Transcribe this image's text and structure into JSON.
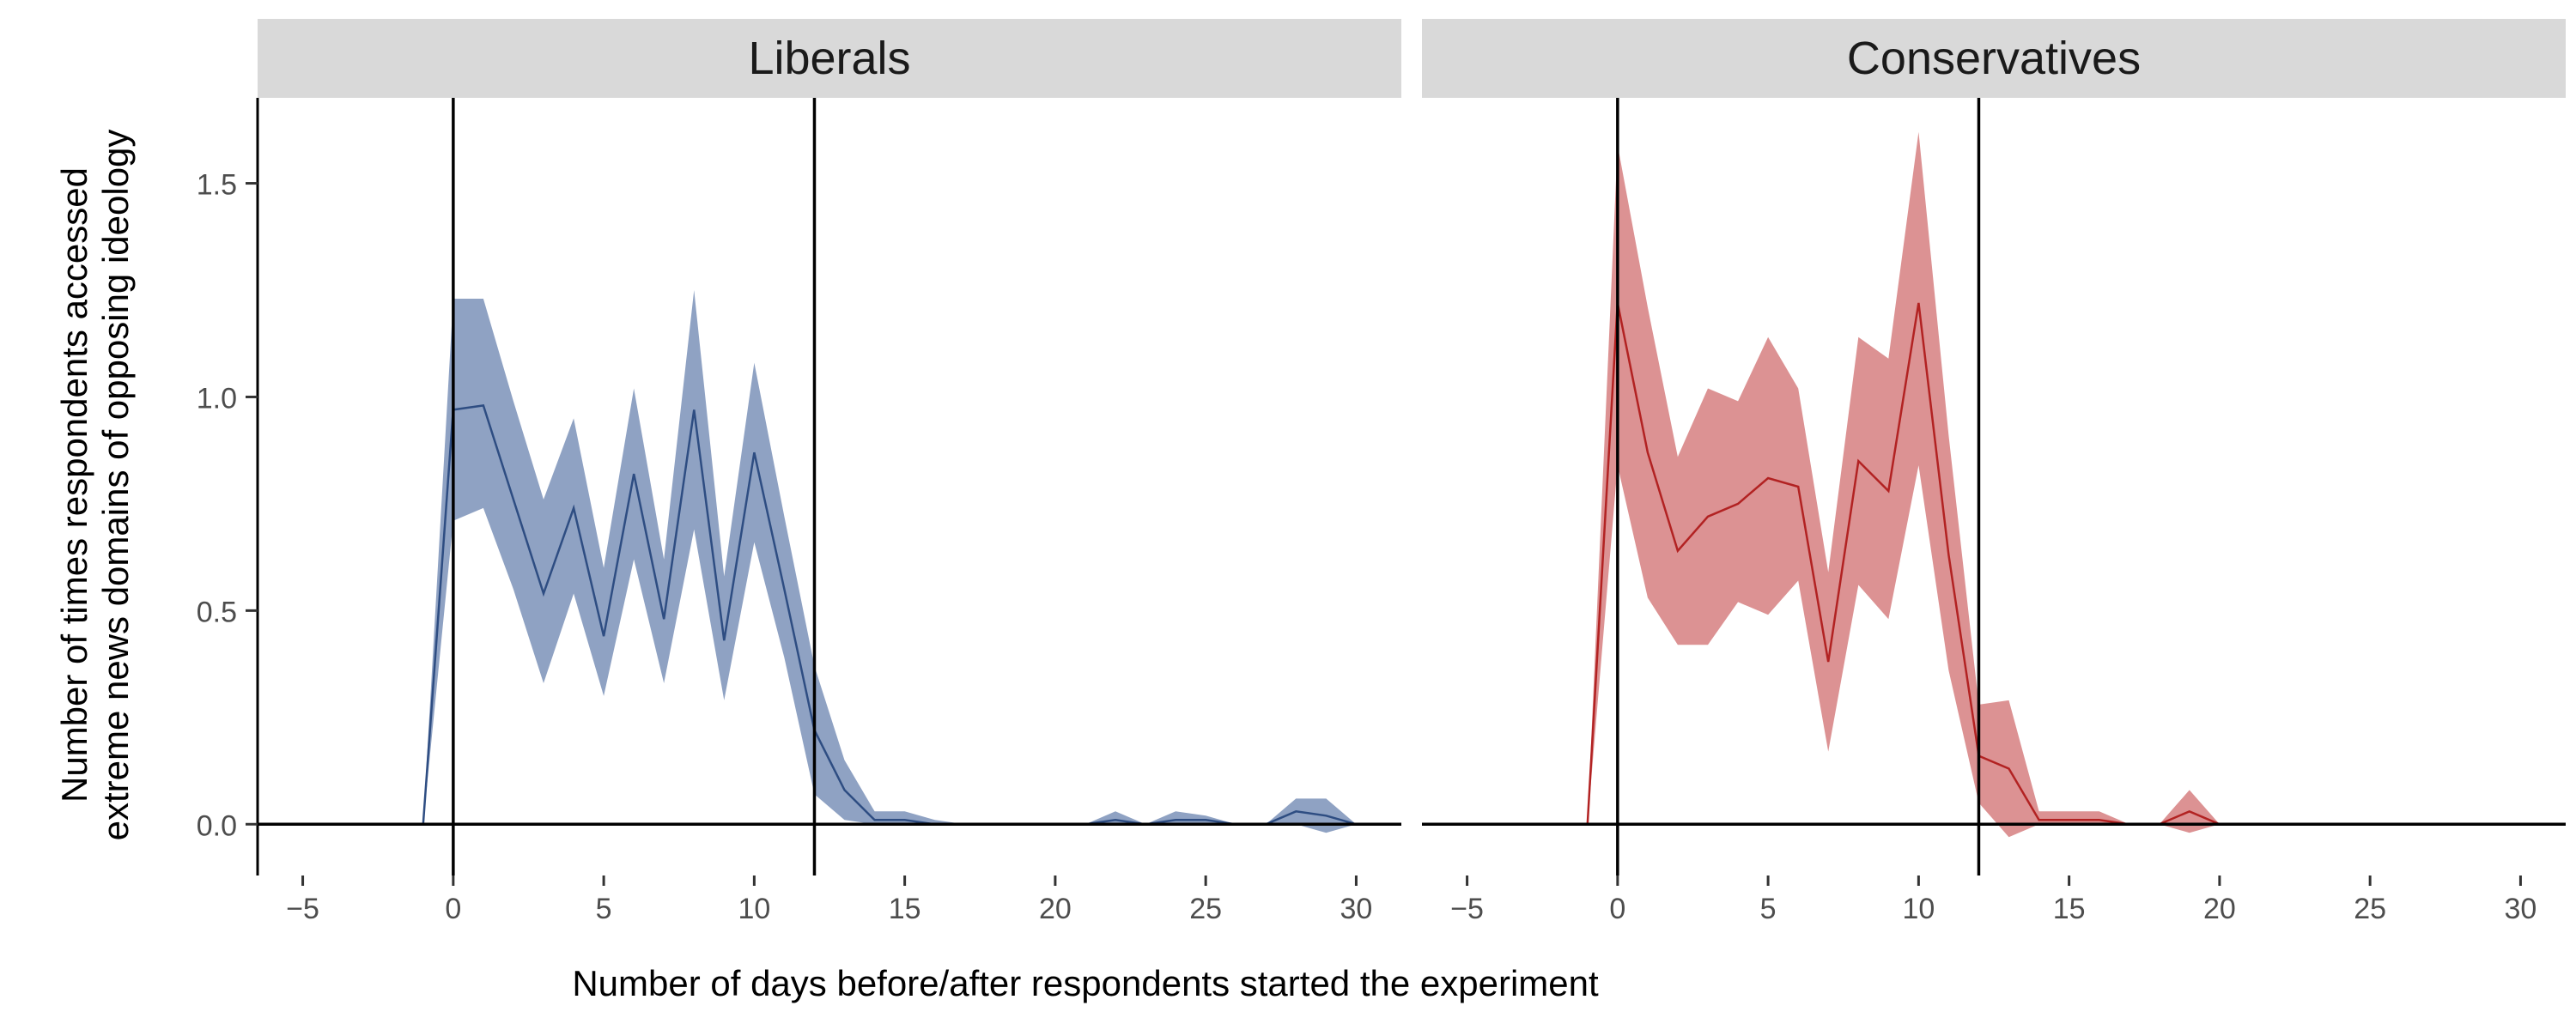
{
  "chart_data": {
    "type": "line",
    "xlabel": "Number of days before/after respondents started the experiment",
    "ylabel_lines": [
      "Number of times respondents accessed",
      "extreme news domains of opposing ideology"
    ],
    "xlim": [
      -6.5,
      31.5
    ],
    "ylim": [
      -0.12,
      1.7
    ],
    "xticks": [
      -5,
      0,
      5,
      10,
      15,
      20,
      25,
      30
    ],
    "yticks": [
      0.0,
      0.5,
      1.0,
      1.5
    ],
    "xtick_labels": [
      "−5",
      "0",
      "5",
      "10",
      "15",
      "20",
      "25",
      "30"
    ],
    "ytick_labels": [
      "0.0",
      "0.5",
      "1.0",
      "1.5"
    ],
    "reference_lines": {
      "vertical": [
        0,
        12
      ],
      "horizontal": [
        0
      ]
    },
    "grid": false,
    "facets": [
      {
        "title": "Liberals",
        "color": "#2e4d82",
        "band_color": "#8fa2c3",
        "x": [
          -1,
          0,
          1,
          2,
          3,
          4,
          5,
          6,
          7,
          8,
          9,
          10,
          11,
          12,
          13,
          14,
          15,
          16,
          17,
          18,
          19,
          20,
          21,
          22,
          23,
          24,
          25,
          26,
          27,
          28,
          29,
          30
        ],
        "y": [
          0.0,
          0.97,
          0.98,
          0.76,
          0.54,
          0.74,
          0.44,
          0.82,
          0.48,
          0.97,
          0.43,
          0.87,
          0.55,
          0.22,
          0.08,
          0.01,
          0.01,
          0.0,
          0.0,
          0.0,
          0.0,
          0.0,
          0.0,
          0.01,
          0.0,
          0.01,
          0.01,
          0.0,
          0.0,
          0.03,
          0.02,
          0.0
        ],
        "lower": [
          0.0,
          0.71,
          0.74,
          0.55,
          0.33,
          0.54,
          0.3,
          0.62,
          0.33,
          0.69,
          0.29,
          0.66,
          0.39,
          0.07,
          0.01,
          0.0,
          0.0,
          0.0,
          0.0,
          0.0,
          0.0,
          0.0,
          0.0,
          0.0,
          0.0,
          0.0,
          0.0,
          0.0,
          0.0,
          0.0,
          -0.02,
          0.0
        ],
        "upper": [
          0.0,
          1.23,
          1.23,
          0.99,
          0.76,
          0.95,
          0.6,
          1.02,
          0.62,
          1.25,
          0.58,
          1.08,
          0.72,
          0.37,
          0.15,
          0.03,
          0.03,
          0.01,
          0.0,
          0.0,
          0.0,
          0.0,
          0.0,
          0.03,
          0.0,
          0.03,
          0.02,
          0.0,
          0.0,
          0.06,
          0.06,
          0.0
        ]
      },
      {
        "title": "Conservatives",
        "color": "#b22222",
        "band_color": "#dc9293",
        "x": [
          -1,
          0,
          1,
          2,
          3,
          4,
          5,
          6,
          7,
          8,
          9,
          10,
          11,
          12,
          13,
          14,
          15,
          16,
          17,
          18,
          19,
          20
        ],
        "y": [
          0.0,
          1.22,
          0.87,
          0.64,
          0.72,
          0.75,
          0.81,
          0.79,
          0.38,
          0.85,
          0.78,
          1.22,
          0.63,
          0.16,
          0.13,
          0.01,
          0.01,
          0.01,
          0.0,
          0.0,
          0.03,
          0.0
        ],
        "lower": [
          0.0,
          0.84,
          0.53,
          0.42,
          0.42,
          0.52,
          0.49,
          0.57,
          0.17,
          0.56,
          0.48,
          0.84,
          0.36,
          0.05,
          -0.03,
          0.0,
          0.0,
          0.0,
          0.0,
          0.0,
          -0.02,
          0.0
        ],
        "upper": [
          0.0,
          1.59,
          1.21,
          0.86,
          1.02,
          0.99,
          1.14,
          1.02,
          0.59,
          1.14,
          1.09,
          1.62,
          0.91,
          0.28,
          0.29,
          0.03,
          0.03,
          0.03,
          0.0,
          0.0,
          0.08,
          0.0
        ]
      }
    ]
  }
}
